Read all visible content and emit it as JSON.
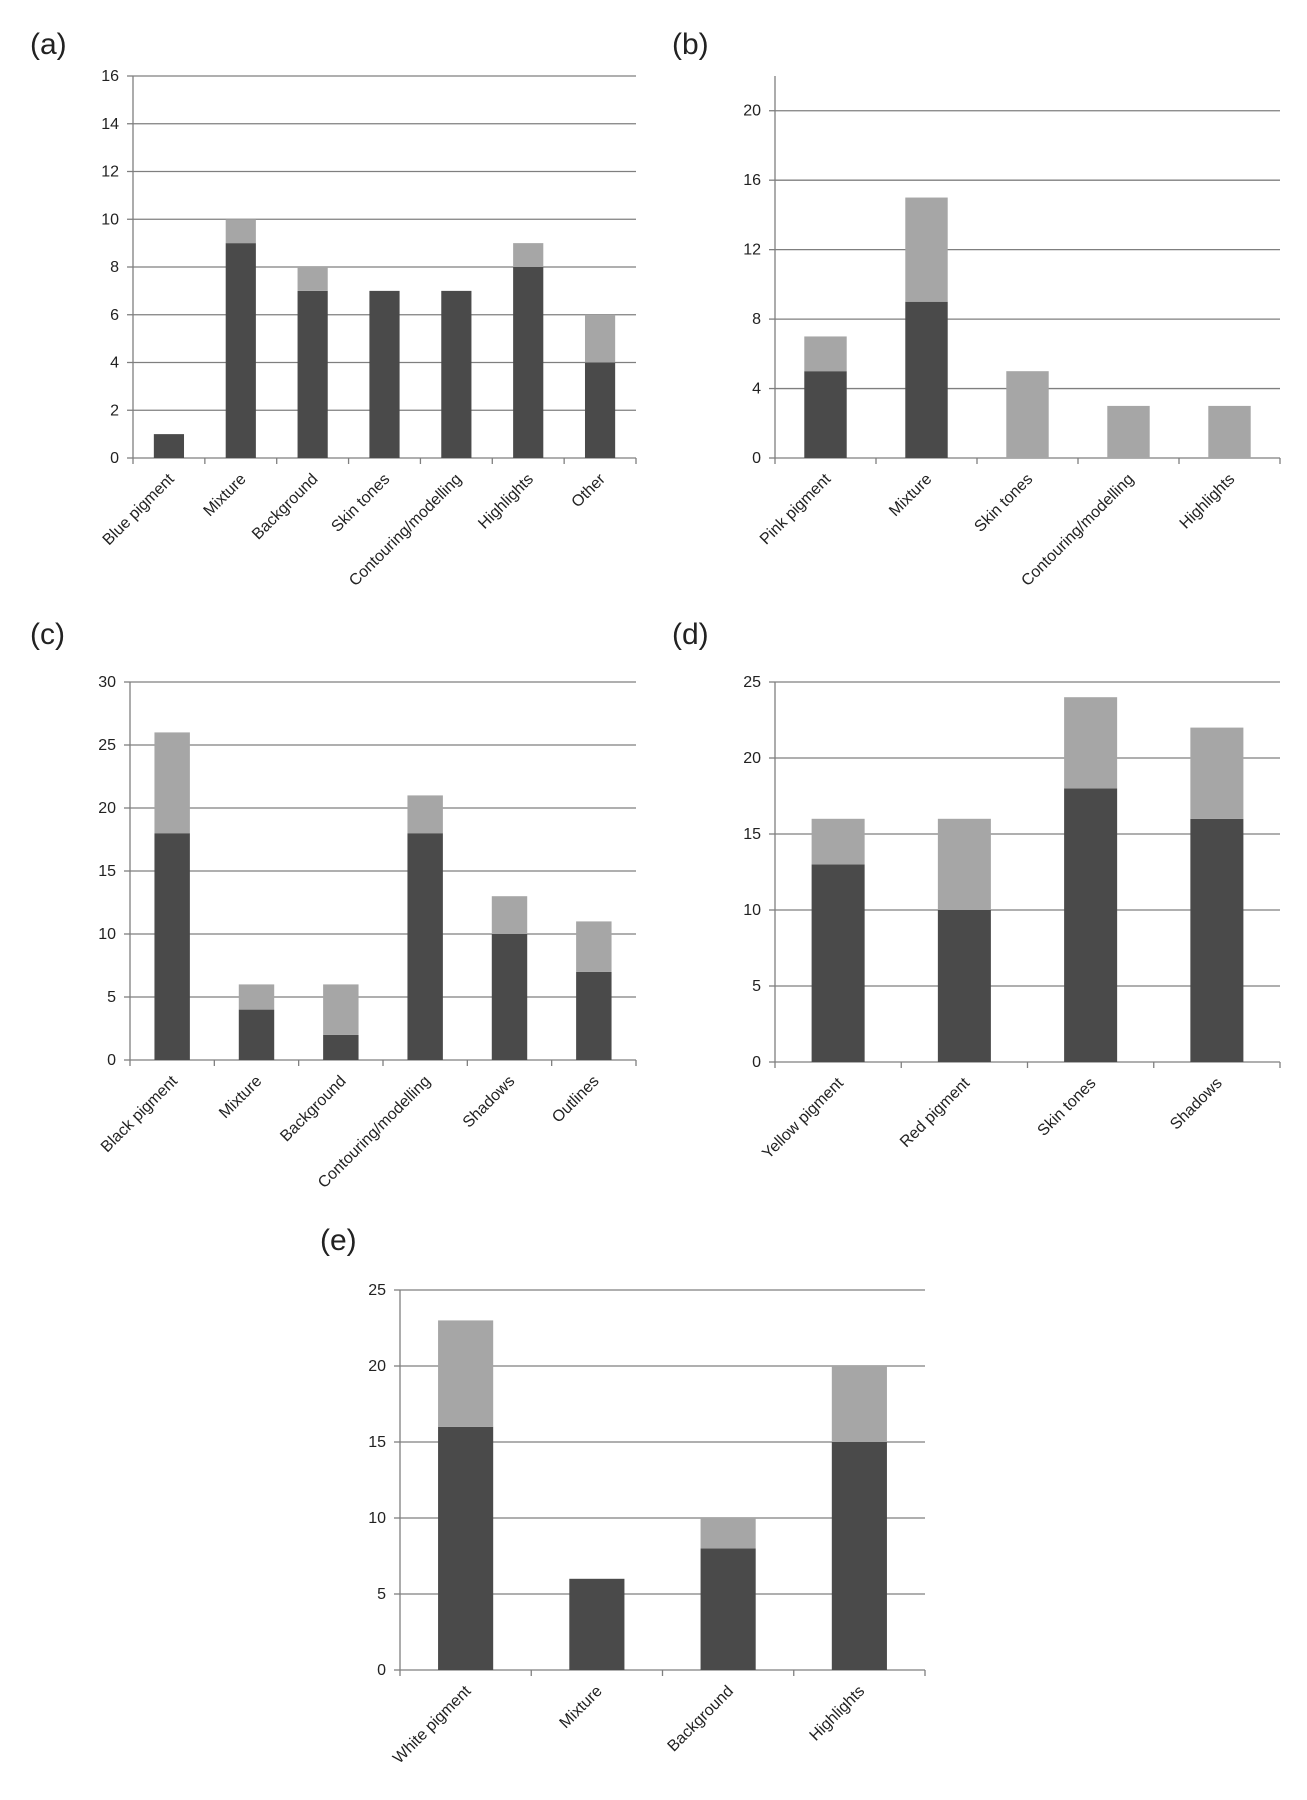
{
  "colors": {
    "dark_series": "#4a4a4a",
    "light_series": "#a6a6a6",
    "gridline": "#7f7f7f",
    "axis": "#7f7f7f",
    "text": "#222222"
  },
  "chart_data": [
    {
      "panel_label": "(a)",
      "type": "bar",
      "stacked": true,
      "categories": [
        "Blue pigment",
        "Mixture",
        "Background",
        "Skin tones",
        "Contouring/modelling",
        "Highlights",
        "Other"
      ],
      "series": [
        {
          "values": [
            1,
            9,
            7,
            7,
            7,
            8,
            4
          ]
        },
        {
          "values": [
            0,
            1,
            1,
            0,
            0,
            1,
            2
          ]
        }
      ],
      "ylim": [
        0,
        16
      ],
      "yticks": [
        0,
        2,
        4,
        6,
        8,
        10,
        12,
        14,
        16
      ],
      "grid": true,
      "title": "",
      "xlabel": "",
      "ylabel": ""
    },
    {
      "panel_label": "(b)",
      "type": "bar",
      "stacked": true,
      "categories": [
        "Pink pigment",
        "Mixture",
        "Skin tones",
        "Contouring/modelling",
        "Highlights"
      ],
      "series": [
        {
          "values": [
            5,
            9,
            0,
            0,
            0
          ]
        },
        {
          "values": [
            2,
            6,
            5,
            3,
            3
          ]
        }
      ],
      "ylim": [
        0,
        22
      ],
      "yticks": [
        0,
        4,
        8,
        12,
        16,
        20
      ],
      "grid": true,
      "title": "",
      "xlabel": "",
      "ylabel": ""
    },
    {
      "panel_label": "(c)",
      "type": "bar",
      "stacked": true,
      "categories": [
        "Black pigment",
        "Mixture",
        "Background",
        "Contouring/modelling",
        "Shadows",
        "Outlines"
      ],
      "series": [
        {
          "values": [
            18,
            4,
            2,
            18,
            10,
            7
          ]
        },
        {
          "values": [
            8,
            2,
            4,
            3,
            3,
            4
          ]
        }
      ],
      "ylim": [
        0,
        30
      ],
      "yticks": [
        0,
        5,
        10,
        15,
        20,
        25,
        30
      ],
      "grid": true,
      "title": "",
      "xlabel": "",
      "ylabel": ""
    },
    {
      "panel_label": "(d)",
      "type": "bar",
      "stacked": true,
      "categories": [
        "Yellow pigment",
        "Red pigment",
        "Skin tones",
        "Shadows"
      ],
      "series": [
        {
          "values": [
            13,
            10,
            18,
            16
          ]
        },
        {
          "values": [
            3,
            6,
            6,
            6
          ]
        }
      ],
      "ylim": [
        0,
        25
      ],
      "yticks": [
        0,
        5,
        10,
        15,
        20,
        25
      ],
      "grid": true,
      "title": "",
      "xlabel": "",
      "ylabel": ""
    },
    {
      "panel_label": "(e)",
      "type": "bar",
      "stacked": true,
      "categories": [
        "White pigment",
        "Mixture",
        "Background",
        "Highlights"
      ],
      "series": [
        {
          "values": [
            16,
            6,
            8,
            15
          ]
        },
        {
          "values": [
            7,
            0,
            2,
            5
          ]
        }
      ],
      "ylim": [
        0,
        25
      ],
      "yticks": [
        0,
        5,
        10,
        15,
        20,
        25
      ],
      "grid": true,
      "title": "",
      "xlabel": "",
      "ylabel": ""
    }
  ]
}
